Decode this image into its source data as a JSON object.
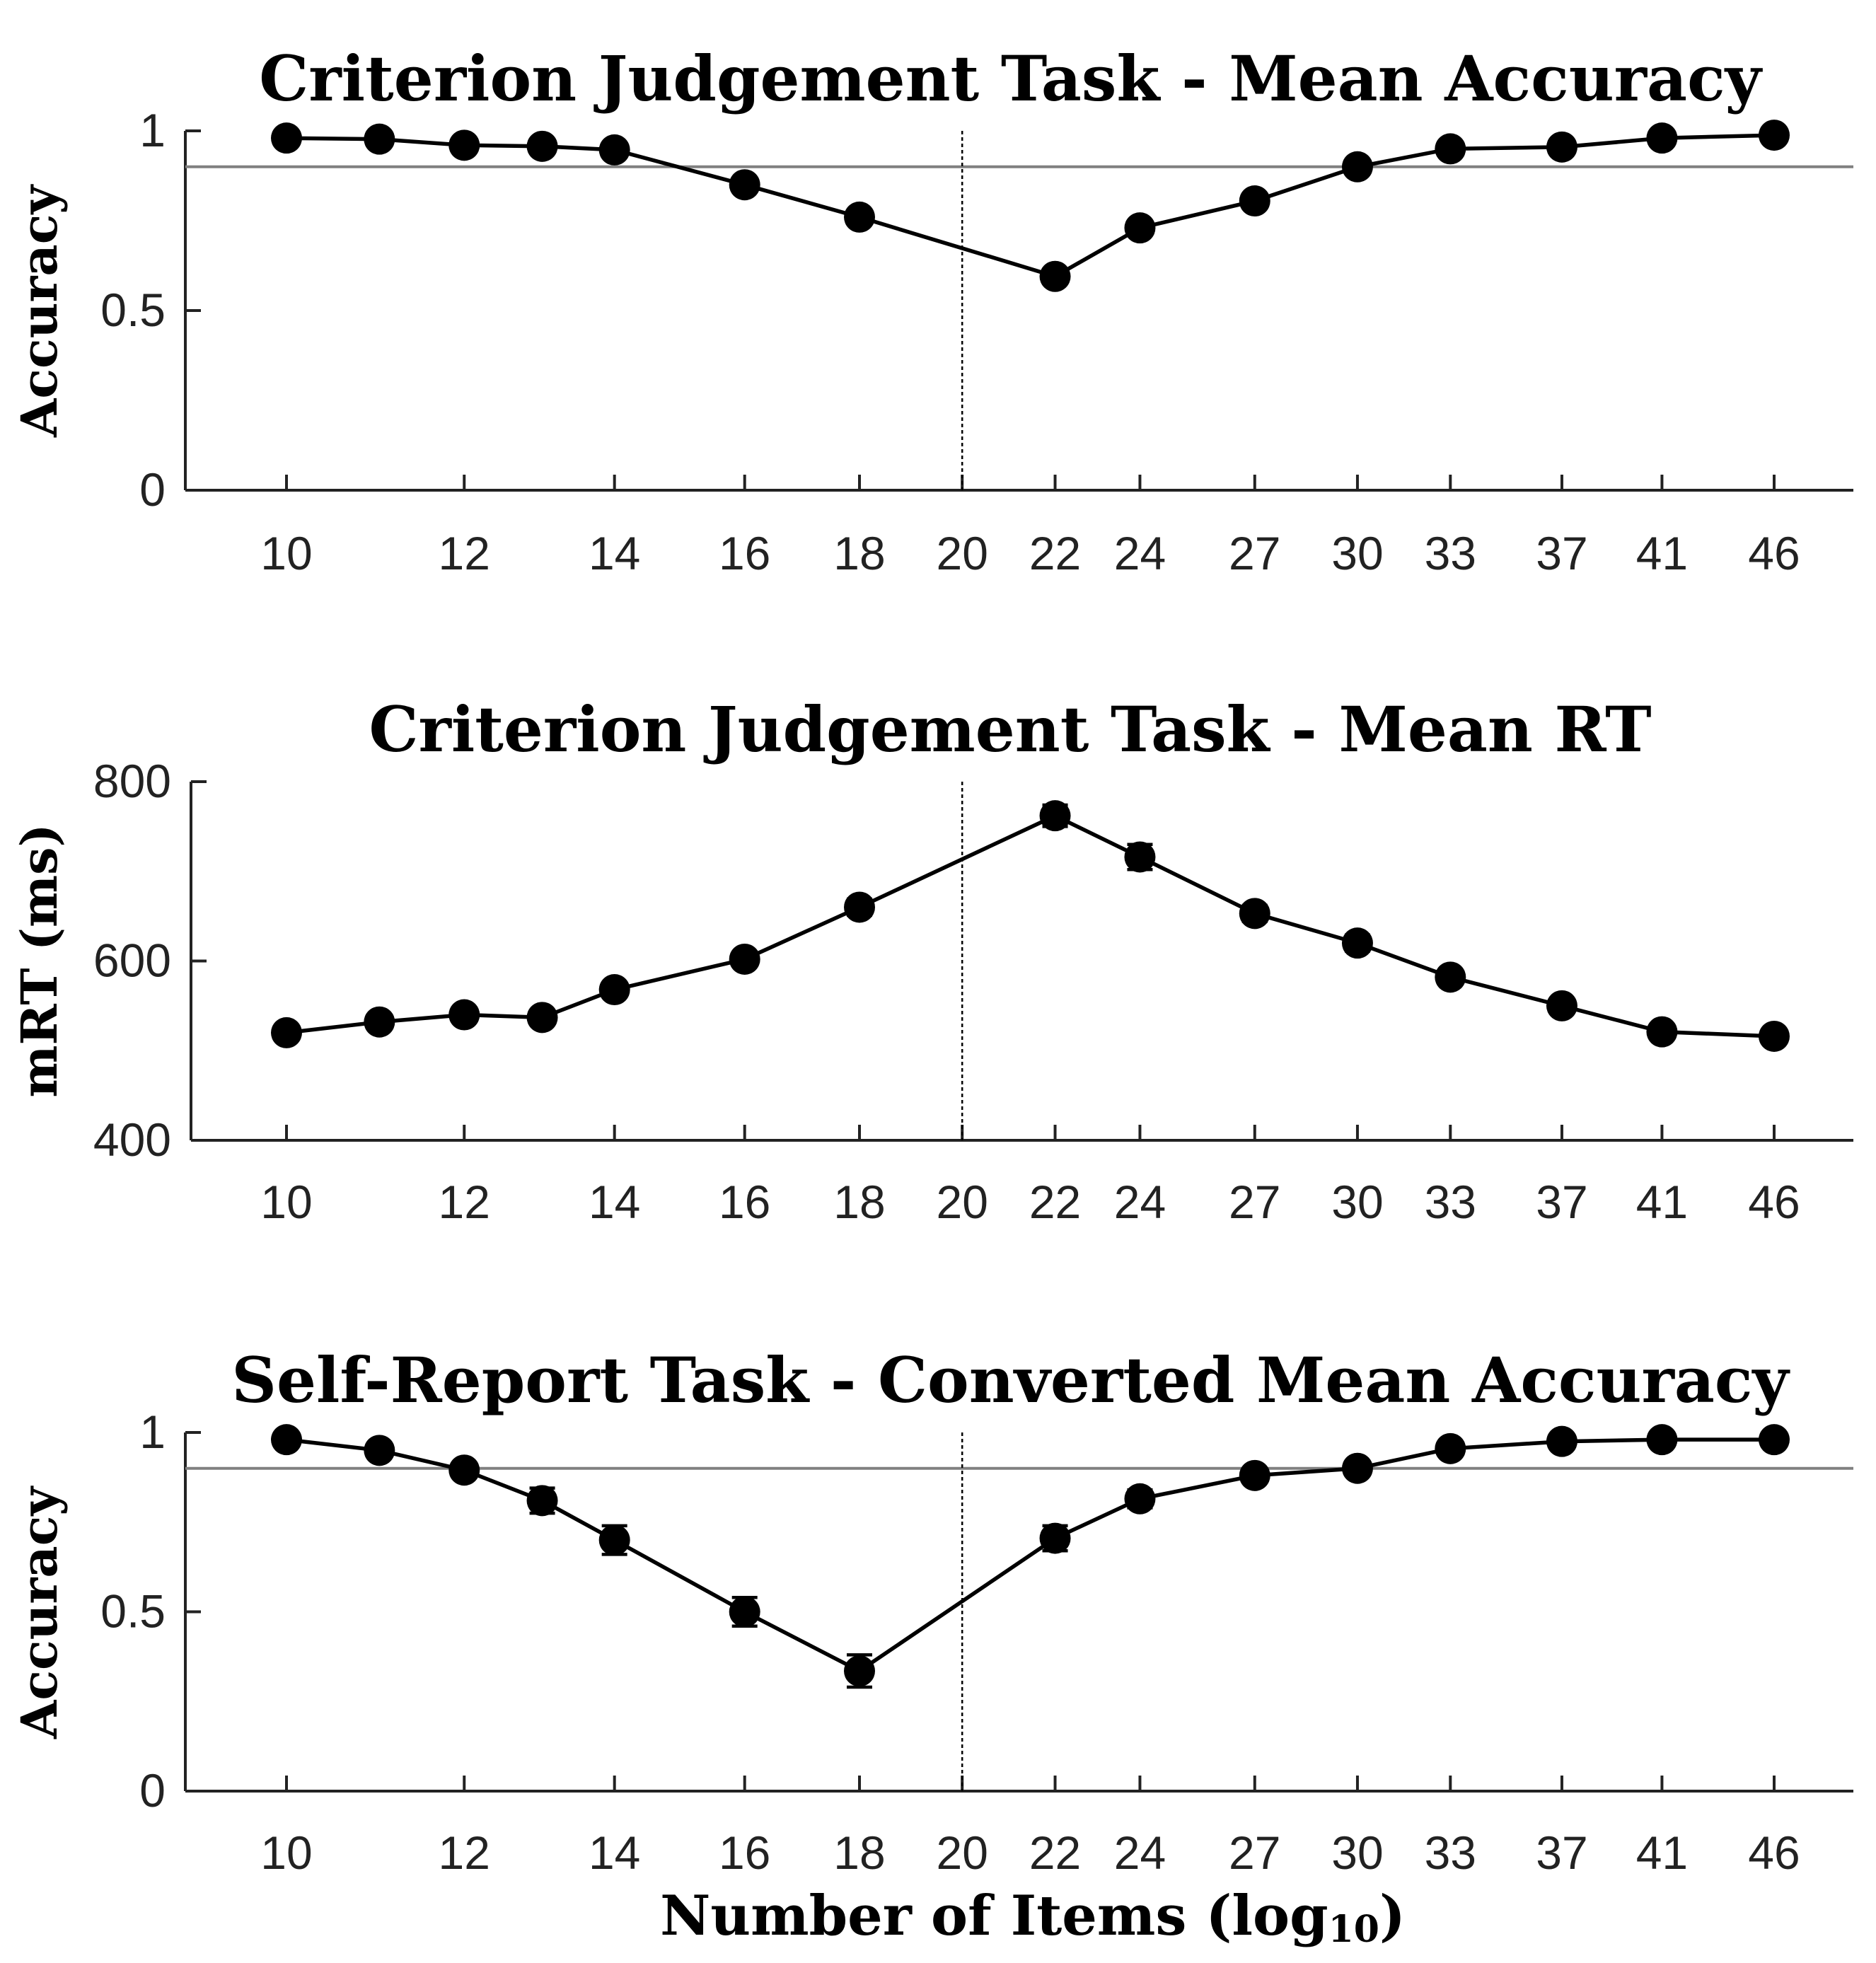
{
  "xlabel": "Number of Items (log",
  "xlabel_sub": "10",
  "xlabel_end": ")",
  "tick_labels": [
    "10",
    "12",
    "14",
    "16",
    "18",
    "20",
    "22",
    "24",
    "27",
    "30",
    "33",
    "37",
    "41",
    "46"
  ],
  "chart_data": [
    {
      "type": "line",
      "title": "Criterion Judgement Task - Mean Accuracy",
      "ylabel": "Accuracy",
      "log_x": true,
      "ylim": [
        0,
        1
      ],
      "yticks": [
        0,
        0.5,
        1
      ],
      "ytick_labels": [
        "0",
        "0.5",
        "1"
      ],
      "xticks": [
        10,
        12,
        14,
        16,
        18,
        20,
        22,
        24,
        27,
        30,
        33,
        37,
        41,
        46
      ],
      "reference_line_y": 0.9,
      "divider_x": 20,
      "grid": false,
      "series": [
        {
          "x": [
            10,
            11,
            12,
            13,
            14,
            16,
            18,
            22,
            24,
            27,
            30,
            33,
            37,
            41,
            46
          ],
          "y": [
            0.98,
            0.977,
            0.96,
            0.957,
            0.947,
            0.85,
            0.76,
            0.595,
            0.73,
            0.805,
            0.9,
            0.95,
            0.955,
            0.98,
            0.988
          ],
          "err": [
            0.008,
            0.008,
            0.008,
            0.008,
            0.01,
            0.012,
            0.014,
            0.02,
            0.018,
            0.015,
            0.012,
            0.01,
            0.008,
            0.006,
            0.006
          ]
        }
      ]
    },
    {
      "type": "line",
      "title": "Criterion Judgement Task - Mean RT",
      "ylabel": "mRT (ms)",
      "log_x": true,
      "ylim": [
        400,
        800
      ],
      "yticks": [
        400,
        600,
        800
      ],
      "ytick_labels": [
        "400",
        "600",
        "800"
      ],
      "xticks": [
        10,
        12,
        14,
        16,
        18,
        20,
        22,
        24,
        27,
        30,
        33,
        37,
        41,
        46
      ],
      "divider_x": 20,
      "grid": false,
      "series": [
        {
          "x": [
            10,
            11,
            12,
            13,
            14,
            16,
            18,
            22,
            24,
            27,
            30,
            33,
            37,
            41,
            46
          ],
          "y": [
            520,
            532,
            540,
            537,
            568,
            602,
            660,
            762,
            716,
            653,
            620,
            582,
            550,
            521,
            516
          ],
          "err": [
            6,
            6,
            6,
            8,
            8,
            8,
            9,
            12,
            14,
            9,
            9,
            8,
            8,
            6,
            6
          ]
        }
      ]
    },
    {
      "type": "line",
      "title": "Self-Report Task - Converted Mean Accuracy",
      "ylabel": "Accuracy",
      "log_x": true,
      "ylim": [
        0,
        1
      ],
      "yticks": [
        0,
        0.5,
        1
      ],
      "ytick_labels": [
        "0",
        "0.5",
        "1"
      ],
      "xticks": [
        10,
        12,
        14,
        16,
        18,
        20,
        22,
        24,
        27,
        30,
        33,
        37,
        41,
        46
      ],
      "reference_line_y": 0.9,
      "divider_x": 20,
      "grid": false,
      "series": [
        {
          "x": [
            10,
            11,
            12,
            13,
            14,
            16,
            18,
            22,
            24,
            27,
            30,
            33,
            37,
            41,
            46
          ],
          "y": [
            0.98,
            0.95,
            0.895,
            0.81,
            0.7,
            0.5,
            0.335,
            0.705,
            0.815,
            0.88,
            0.9,
            0.955,
            0.975,
            0.98,
            0.98
          ],
          "err": [
            0.01,
            0.012,
            0.02,
            0.035,
            0.04,
            0.04,
            0.045,
            0.035,
            0.025,
            0.02,
            0.018,
            0.012,
            0.01,
            0.008,
            0.008
          ]
        }
      ]
    }
  ],
  "colors": {
    "line": "#000000",
    "reference_line": "#808080",
    "axis": "#222222"
  }
}
